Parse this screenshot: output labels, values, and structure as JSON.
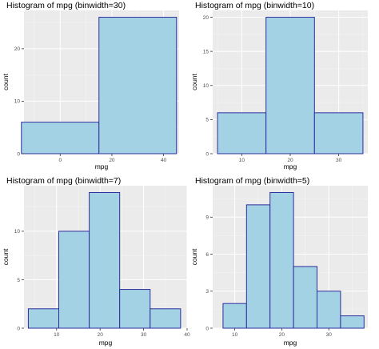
{
  "colors": {
    "panel_background": "#EBEBEB",
    "grid_major": "#FFFFFF",
    "grid_minor": "#F5F5F5",
    "bar_fill": "#A2D2E4",
    "bar_outline": "#2E2E9E",
    "tick_color": "#333333"
  },
  "chart_data": [
    {
      "type": "bar",
      "title": "Histogram of mpg (binwidth=30)",
      "xlabel": "mpg",
      "ylabel": "count",
      "xlim": [
        -14,
        46
      ],
      "ylim": [
        0,
        27.3
      ],
      "x_ticks": [
        0,
        20,
        40
      ],
      "y_ticks": [
        0,
        10,
        20
      ],
      "bins": [
        {
          "x0": -15,
          "x1": 15,
          "count": 6
        },
        {
          "x0": 15,
          "x1": 45,
          "count": 26
        }
      ]
    },
    {
      "type": "bar",
      "title": "Histogram of mpg (binwidth=10)",
      "xlabel": "mpg",
      "ylabel": "count",
      "xlim": [
        4,
        36
      ],
      "ylim": [
        0,
        21
      ],
      "x_ticks": [
        10,
        20,
        30
      ],
      "y_ticks": [
        0,
        5,
        10,
        15,
        20
      ],
      "bins": [
        {
          "x0": 5,
          "x1": 15,
          "count": 6
        },
        {
          "x0": 15,
          "x1": 25,
          "count": 20
        },
        {
          "x0": 25,
          "x1": 35,
          "count": 6
        }
      ]
    },
    {
      "type": "bar",
      "title": "Histogram of mpg (binwidth=7)",
      "xlabel": "mpg",
      "ylabel": "count",
      "xlim": [
        2.5,
        40
      ],
      "ylim": [
        0,
        14.7
      ],
      "x_ticks": [
        10,
        20,
        30,
        40
      ],
      "y_ticks": [
        0,
        5,
        10
      ],
      "bins": [
        {
          "x0": 3.5,
          "x1": 10.5,
          "count": 2
        },
        {
          "x0": 10.5,
          "x1": 17.5,
          "count": 10
        },
        {
          "x0": 17.5,
          "x1": 24.5,
          "count": 14
        },
        {
          "x0": 24.5,
          "x1": 31.5,
          "count": 4
        },
        {
          "x0": 31.5,
          "x1": 38.5,
          "count": 2
        }
      ]
    },
    {
      "type": "bar",
      "title": "Histogram of mpg (binwidth=5)",
      "xlabel": "mpg",
      "ylabel": "count",
      "xlim": [
        5.3,
        38.3
      ],
      "ylim": [
        0,
        11.55
      ],
      "x_ticks": [
        10,
        20,
        30
      ],
      "y_ticks": [
        0,
        3,
        6,
        9
      ],
      "bins": [
        {
          "x0": 7.5,
          "x1": 12.5,
          "count": 2
        },
        {
          "x0": 12.5,
          "x1": 17.5,
          "count": 10
        },
        {
          "x0": 17.5,
          "x1": 22.5,
          "count": 11
        },
        {
          "x0": 22.5,
          "x1": 27.5,
          "count": 5
        },
        {
          "x0": 27.5,
          "x1": 32.5,
          "count": 3
        },
        {
          "x0": 32.5,
          "x1": 37.5,
          "count": 1
        }
      ]
    }
  ]
}
